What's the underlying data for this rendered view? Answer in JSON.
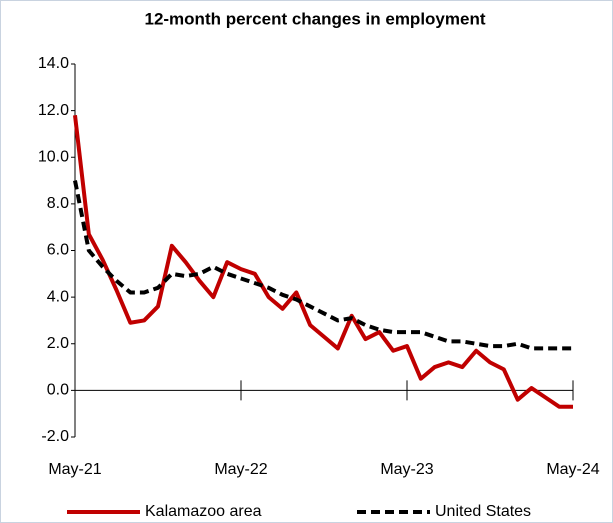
{
  "chart_data": {
    "type": "line",
    "title": "12-month percent changes in employment",
    "categories": [
      "May-21",
      null,
      null,
      null,
      null,
      null,
      null,
      null,
      null,
      null,
      null,
      null,
      "May-22",
      null,
      null,
      null,
      null,
      null,
      null,
      null,
      null,
      null,
      null,
      null,
      "May-23",
      null,
      null,
      null,
      null,
      null,
      null,
      null,
      null,
      null,
      null,
      null,
      "May-24"
    ],
    "series": [
      {
        "name": "Kalamazoo area",
        "color": "#c00000",
        "dash": false,
        "values": [
          11.8,
          6.7,
          5.6,
          4.3,
          2.9,
          3.0,
          3.6,
          6.2,
          5.5,
          4.7,
          4.0,
          5.5,
          5.2,
          5.0,
          4.0,
          3.5,
          4.2,
          2.8,
          2.3,
          1.8,
          3.2,
          2.2,
          2.5,
          1.7,
          1.9,
          0.5,
          1.0,
          1.2,
          1.0,
          1.7,
          1.2,
          0.9,
          -0.4,
          0.1,
          -0.3,
          -0.7,
          -0.7
        ]
      },
      {
        "name": "United States",
        "color": "#000000",
        "dash": true,
        "values": [
          9.0,
          6.0,
          5.3,
          4.7,
          4.2,
          4.2,
          4.4,
          5.0,
          4.9,
          5.0,
          5.3,
          5.0,
          4.8,
          4.6,
          4.4,
          4.1,
          3.9,
          3.6,
          3.3,
          3.0,
          3.1,
          2.8,
          2.6,
          2.5,
          2.5,
          2.5,
          2.3,
          2.1,
          2.1,
          2.0,
          1.9,
          1.9,
          2.0,
          1.8,
          1.8,
          1.8,
          1.8
        ]
      }
    ],
    "ylim": [
      -2,
      14
    ],
    "yticks": [
      {
        "value": -2,
        "label": "-2.0"
      },
      {
        "value": 0,
        "label": "0.0"
      },
      {
        "value": 2,
        "label": "2.0"
      },
      {
        "value": 4,
        "label": "4.0"
      },
      {
        "value": 6,
        "label": "6.0"
      },
      {
        "value": 8,
        "label": "8.0"
      },
      {
        "value": 10,
        "label": "10.0"
      },
      {
        "value": 12,
        "label": "12.0"
      },
      {
        "value": 14,
        "label": "14.0"
      }
    ],
    "grid": false,
    "legend": "bottom"
  }
}
